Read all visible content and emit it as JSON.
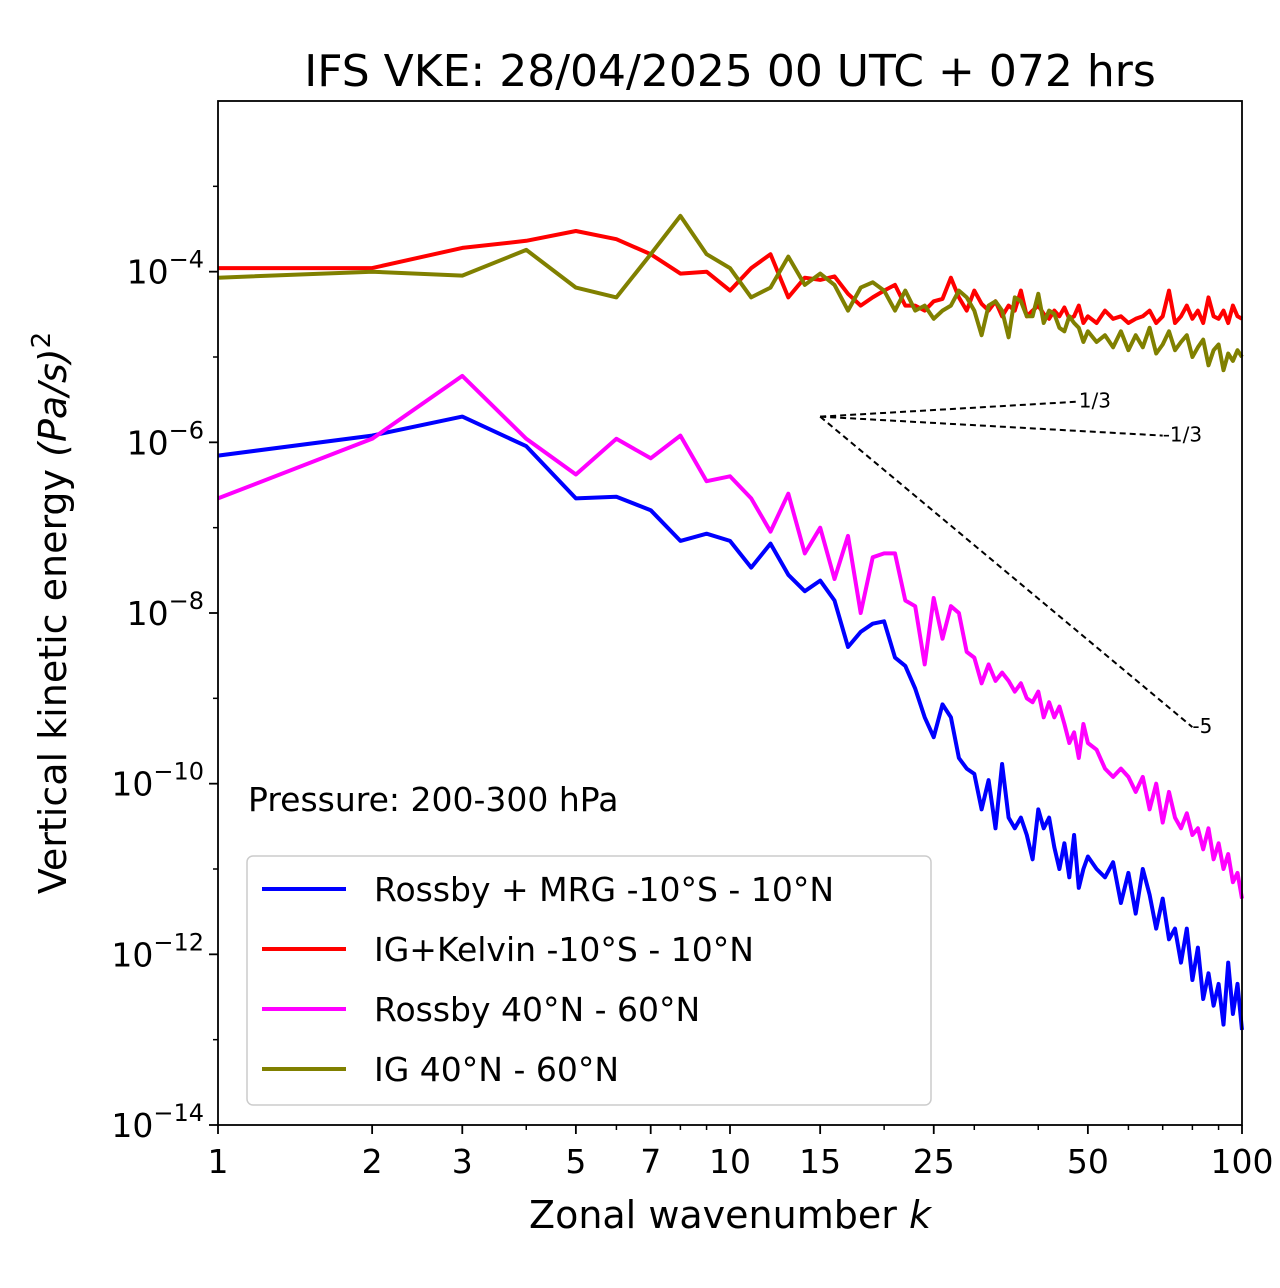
{
  "chart_data": {
    "type": "line",
    "title": "IFS VKE: 28/04/2025 00 UTC + 072 hrs",
    "xlabel": "Zonal wavenumber",
    "xlabel_var": "k",
    "ylabel": "Vertical kinetic energy",
    "ylabel_unit": "(Pa/s)",
    "ylabel_exp": "2",
    "x_scale": "log",
    "y_scale": "log",
    "xlim": [
      1,
      100
    ],
    "ylim": [
      1e-14,
      0.01
    ],
    "x_ticks": [
      {
        "value": 1,
        "label": "1"
      },
      {
        "value": 2,
        "label": "2"
      },
      {
        "value": 3,
        "label": "3"
      },
      {
        "value": 5,
        "label": "5"
      },
      {
        "value": 7,
        "label": "7"
      },
      {
        "value": 10,
        "label": "10"
      },
      {
        "value": 15,
        "label": "15"
      },
      {
        "value": 25,
        "label": "25"
      },
      {
        "value": 50,
        "label": "50"
      },
      {
        "value": 100,
        "label": "100"
      }
    ],
    "y_ticks": [
      {
        "value": 0.0001,
        "base": "10",
        "exp": "−4"
      },
      {
        "value": 1e-06,
        "base": "10",
        "exp": "−6"
      },
      {
        "value": 1e-08,
        "base": "10",
        "exp": "−8"
      },
      {
        "value": 1e-10,
        "base": "10",
        "exp": "−10"
      },
      {
        "value": 1e-12,
        "base": "10",
        "exp": "−12"
      },
      {
        "value": 1e-14,
        "base": "10",
        "exp": "−14"
      }
    ],
    "annotation": "Pressure: 200-300 hPa",
    "legend_position": "lower-left",
    "grid": false,
    "series": [
      {
        "name": "Rossby + MRG -10°S - 10°N",
        "color": "#0000ff",
        "x": [
          1,
          2,
          3,
          4,
          5,
          6,
          7,
          8,
          9,
          10,
          11,
          12,
          13,
          14,
          15,
          16,
          17,
          18,
          19,
          20,
          21,
          22,
          23,
          24,
          25,
          26,
          27,
          28,
          29,
          30,
          31,
          32,
          33,
          34,
          35,
          36,
          37,
          38,
          39,
          40,
          41,
          42,
          43,
          44,
          45,
          46,
          47,
          48,
          49,
          50,
          52,
          54,
          56,
          58,
          60,
          62,
          64,
          66,
          68,
          70,
          72,
          74,
          76,
          78,
          80,
          82,
          84,
          86,
          88,
          90,
          92,
          94,
          96,
          98,
          100
        ],
        "y": [
          7e-07,
          1.2e-06,
          2e-06,
          9e-07,
          2.2e-07,
          2.3e-07,
          1.6e-07,
          7e-08,
          8.5e-08,
          7e-08,
          3.4e-08,
          6.5e-08,
          2.8e-08,
          1.8e-08,
          2.4e-08,
          1.4e-08,
          4e-09,
          6e-09,
          7.5e-09,
          8e-09,
          3e-09,
          2.4e-09,
          1.3e-09,
          6e-10,
          3.5e-10,
          8.5e-10,
          6e-10,
          2e-10,
          1.5e-10,
          1.3e-10,
          5e-11,
          1.1e-10,
          3e-11,
          1.7e-10,
          4e-11,
          3e-11,
          4e-11,
          2.5e-11,
          1.3e-11,
          5e-11,
          3e-11,
          4e-11,
          1.8e-11,
          1e-11,
          2e-11,
          8e-12,
          2.5e-11,
          6e-12,
          1e-11,
          1.4e-11,
          1e-11,
          8e-12,
          1.2e-11,
          4e-12,
          9e-12,
          3e-12,
          1e-11,
          5e-12,
          2e-12,
          4.5e-12,
          1.5e-12,
          2e-12,
          8e-13,
          2e-12,
          5e-13,
          1.2e-12,
          3e-13,
          6e-13,
          2.5e-13,
          4.5e-13,
          1.5e-13,
          8e-13,
          2e-13,
          4.5e-13,
          1.3e-13
        ]
      },
      {
        "name": "IG+Kelvin -10°S - 10°N",
        "color": "#ff0000",
        "x": [
          1,
          2,
          3,
          4,
          5,
          6,
          7,
          8,
          9,
          10,
          11,
          12,
          13,
          14,
          15,
          16,
          17,
          18,
          19,
          20,
          21,
          22,
          23,
          24,
          25,
          26,
          27,
          28,
          29,
          30,
          31,
          32,
          33,
          34,
          35,
          36,
          37,
          38,
          39,
          40,
          41,
          42,
          43,
          44,
          45,
          46,
          47,
          48,
          49,
          50,
          52,
          54,
          56,
          58,
          60,
          62,
          64,
          66,
          68,
          70,
          72,
          74,
          76,
          78,
          80,
          82,
          84,
          86,
          88,
          90,
          92,
          94,
          96,
          98,
          100
        ],
        "y": [
          0.00011,
          0.00011,
          0.00019,
          0.00023,
          0.0003,
          0.00024,
          0.00016,
          9.5e-05,
          0.0001,
          6e-05,
          0.00011,
          0.00016,
          5e-05,
          8.5e-05,
          8e-05,
          8.8e-05,
          5.5e-05,
          4e-05,
          5e-05,
          6e-05,
          7e-05,
          4e-05,
          4e-05,
          3.5e-05,
          4.5e-05,
          4.8e-05,
          8.5e-05,
          5e-05,
          3.5e-05,
          6e-05,
          4.2e-05,
          3.5e-05,
          4.5e-05,
          3e-05,
          4e-05,
          3.5e-05,
          6e-05,
          3e-05,
          3.5e-05,
          4e-05,
          3.2e-05,
          2.8e-05,
          3.5e-05,
          3e-05,
          3.8e-05,
          2.8e-05,
          3e-05,
          4e-05,
          2.5e-05,
          3e-05,
          2.5e-05,
          3.5e-05,
          2.8e-05,
          3e-05,
          2.5e-05,
          2.8e-05,
          3e-05,
          3.5e-05,
          2.5e-05,
          3e-05,
          6e-05,
          2.5e-05,
          3e-05,
          4e-05,
          2.8e-05,
          3.5e-05,
          2.5e-05,
          5e-05,
          3e-05,
          2.8e-05,
          3.5e-05,
          2.5e-05,
          4e-05,
          3e-05,
          2.8e-05
        ]
      },
      {
        "name": "Rossby 40°N - 60°N",
        "color": "#ff00ff",
        "x": [
          1,
          2,
          3,
          4,
          5,
          6,
          7,
          8,
          9,
          10,
          11,
          12,
          13,
          14,
          15,
          16,
          17,
          18,
          19,
          20,
          21,
          22,
          23,
          24,
          25,
          26,
          27,
          28,
          29,
          30,
          31,
          32,
          33,
          34,
          35,
          36,
          37,
          38,
          39,
          40,
          41,
          42,
          43,
          44,
          45,
          46,
          47,
          48,
          49,
          50,
          52,
          54,
          56,
          58,
          60,
          62,
          64,
          66,
          68,
          70,
          72,
          74,
          76,
          78,
          80,
          82,
          84,
          86,
          88,
          90,
          92,
          94,
          96,
          98,
          100
        ],
        "y": [
          2.2e-07,
          1.1e-06,
          6e-06,
          1.1e-06,
          4.2e-07,
          1.1e-06,
          6.5e-07,
          1.2e-06,
          3.5e-07,
          4e-07,
          2.2e-07,
          9e-08,
          2.5e-07,
          5e-08,
          1e-07,
          2.5e-08,
          8e-08,
          1e-08,
          4.5e-08,
          5e-08,
          5e-08,
          1.4e-08,
          1.2e-08,
          2.5e-09,
          1.5e-08,
          5e-09,
          1.2e-08,
          1e-08,
          3.5e-09,
          3e-09,
          1.5e-09,
          2.5e-09,
          1.6e-09,
          2e-09,
          1.6e-09,
          1.2e-09,
          1.5e-09,
          1e-09,
          9e-10,
          1.2e-09,
          6e-10,
          9e-10,
          6e-10,
          8e-10,
          5e-10,
          3e-10,
          4e-10,
          2e-10,
          5e-10,
          3e-10,
          2.5e-10,
          1.5e-10,
          1.2e-10,
          1.5e-10,
          1.2e-10,
          8e-11,
          1.2e-10,
          5e-11,
          1e-10,
          3.5e-11,
          8e-11,
          4e-11,
          3e-11,
          4.5e-11,
          2.5e-11,
          3e-11,
          1.7e-11,
          3e-11,
          1.3e-11,
          2e-11,
          1e-11,
          1.5e-11,
          7e-12,
          9e-12,
          4.5e-12
        ]
      },
      {
        "name": "IG 40°N - 60°N",
        "color": "#808000",
        "x": [
          1,
          2,
          3,
          4,
          5,
          6,
          7,
          8,
          9,
          10,
          11,
          12,
          13,
          14,
          15,
          16,
          17,
          18,
          19,
          20,
          21,
          22,
          23,
          24,
          25,
          26,
          27,
          28,
          29,
          30,
          31,
          32,
          33,
          34,
          35,
          36,
          37,
          38,
          39,
          40,
          41,
          42,
          43,
          44,
          45,
          46,
          47,
          48,
          49,
          50,
          52,
          54,
          56,
          58,
          60,
          62,
          64,
          66,
          68,
          70,
          72,
          74,
          76,
          78,
          80,
          82,
          84,
          86,
          88,
          90,
          92,
          94,
          96,
          98,
          100
        ],
        "y": [
          8.5e-05,
          0.0001,
          9e-05,
          0.00018,
          6.5e-05,
          5e-05,
          0.00016,
          0.00045,
          0.00016,
          0.00011,
          5e-05,
          6.5e-05,
          0.00015,
          7e-05,
          9.5e-05,
          7e-05,
          3.5e-05,
          6.5e-05,
          7.5e-05,
          6e-05,
          3.5e-05,
          6e-05,
          3.5e-05,
          4e-05,
          2.8e-05,
          3.5e-05,
          4e-05,
          6e-05,
          5e-05,
          3.5e-05,
          1.8e-05,
          4e-05,
          4.5e-05,
          3.5e-05,
          1.7e-05,
          5e-05,
          4.5e-05,
          3e-05,
          3e-05,
          5.5e-05,
          2.5e-05,
          3.5e-05,
          3.2e-05,
          2.2e-05,
          2e-05,
          3e-05,
          2.5e-05,
          2.2e-05,
          1.5e-05,
          2e-05,
          1.5e-05,
          1.8e-05,
          1.3e-05,
          2e-05,
          1.2e-05,
          1.8e-05,
          1.3e-05,
          2.2e-05,
          1.1e-05,
          1.4e-05,
          2e-05,
          1.2e-05,
          1.5e-05,
          1.8e-05,
          1e-05,
          1.3e-05,
          1.6e-05,
          8e-06,
          1.2e-05,
          1.4e-05,
          7e-06,
          1.1e-05,
          9e-06,
          1.2e-05,
          1e-05
        ]
      }
    ],
    "reference_lines": [
      {
        "label": "1/3",
        "x": [
          15,
          48
        ],
        "y": [
          2e-06,
          3e-06
        ]
      },
      {
        "label": "-1/3",
        "x": [
          15,
          70
        ],
        "y": [
          2e-06,
          1.2e-06
        ]
      },
      {
        "label": "-5",
        "x": [
          15,
          80
        ],
        "y": [
          2e-06,
          4.6e-10
        ]
      }
    ]
  }
}
